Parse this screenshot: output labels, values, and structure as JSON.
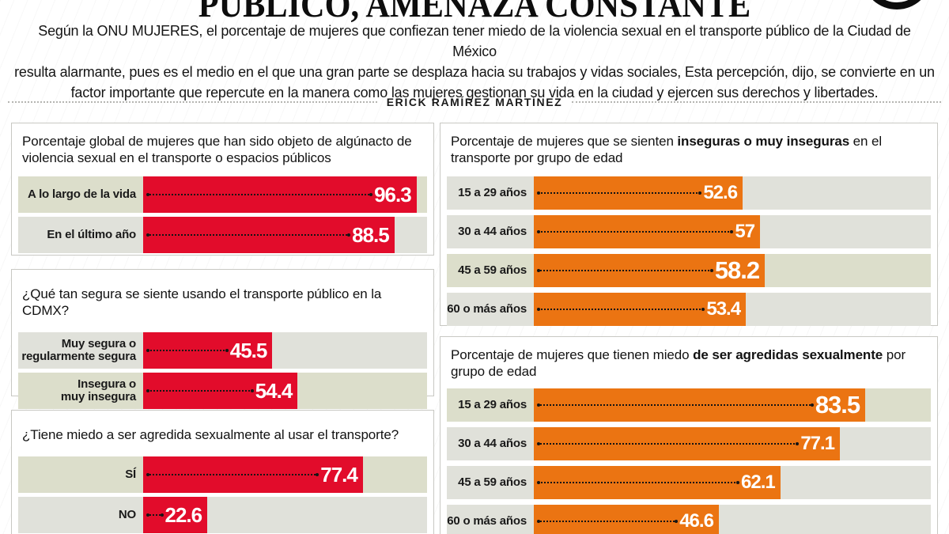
{
  "header": {
    "title": "PÚBLICO, AMENAZA CONSTANTE",
    "intro": "Según la ONU MUJERES, el porcentaje de mujeres que confiezan tener miedo de la violencia sexual en el transporte público de la Ciudad de México\nresulta alarmante, pues es el medio en el que una gran parte se desplaza hacia su trabajos y vidas sociales, Esta percepción, dijo, se convierte en un\nfactor importante que repercute en la manera como las mujeres gestionan su vida en la ciudad y ejercen sus derechos y libertades.",
    "byline": "ERICK RAMÍREZ MARTÍNEZ"
  },
  "colors": {
    "red": "#e20c2b",
    "orange": "#eb7412",
    "row_base": "#e0e1da",
    "row_highlight": "#dcdecb",
    "panel_border": "#c8c8c3",
    "leader": "#141414"
  },
  "chart_data": [
    {
      "type": "bar",
      "orientation": "horizontal",
      "column": "left",
      "title_pre": "Porcentaje global de mujeres que han sido objeto de algúnacto de violencia sexual en el transporte o espacios públicos",
      "title_bold": "",
      "title_post": "",
      "bar_color": "#e20c2b",
      "xlim": [
        0,
        100
      ],
      "grid": false,
      "legend": "none",
      "categories": [
        "A lo largo de la vida",
        "En el último año"
      ],
      "values": [
        96.3,
        88.5
      ],
      "value_labels": [
        "96.3",
        "88.5"
      ],
      "highlight_index": 0,
      "emphasize_value": false
    },
    {
      "type": "bar",
      "orientation": "horizontal",
      "column": "left",
      "title_pre": "¿Qué tan segura se siente usando el transporte público en la CDMX?",
      "title_bold": "",
      "title_post": "",
      "bar_color": "#e20c2b",
      "xlim": [
        0,
        100
      ],
      "grid": false,
      "legend": "none",
      "categories": [
        "Muy segura o\nregularmente segura",
        "Insegura o\nmuy insegura"
      ],
      "values": [
        45.5,
        54.4
      ],
      "value_labels": [
        "45.5",
        "54.4"
      ],
      "highlight_index": 1,
      "emphasize_value": false
    },
    {
      "type": "bar",
      "orientation": "horizontal",
      "column": "left",
      "title_pre": "¿Tiene miedo a ser agredida sexualmente al usar el transporte?",
      "title_bold": "",
      "title_post": "",
      "bar_color": "#e20c2b",
      "xlim": [
        0,
        100
      ],
      "grid": false,
      "legend": "none",
      "categories": [
        "SÍ",
        "NO"
      ],
      "values": [
        77.4,
        22.6
      ],
      "value_labels": [
        "77.4",
        "22.6"
      ],
      "highlight_index": 0,
      "emphasize_value": false
    },
    {
      "type": "bar",
      "orientation": "horizontal",
      "column": "right",
      "title_pre": "Porcentaje  de mujeres que se sienten ",
      "title_bold": "inseguras o muy inseguras",
      "title_post": " en el transporte por grupo de edad",
      "bar_color": "#eb7412",
      "xlim": [
        0,
        100
      ],
      "grid": false,
      "legend": "none",
      "categories": [
        "15 a 29 años",
        "30 a 44 años",
        "45 a 59 años",
        "60 o más años"
      ],
      "values": [
        52.6,
        57,
        58.2,
        53.4
      ],
      "value_labels": [
        "52.6",
        "57",
        "58.2",
        "53.4"
      ],
      "highlight_index": 2,
      "emphasize_value": true
    },
    {
      "type": "bar",
      "orientation": "horizontal",
      "column": "right",
      "title_pre": "Porcentaje  de mujeres que tienen miedo ",
      "title_bold": "de ser agredidas sexualmente",
      "title_post": " por grupo de edad",
      "bar_color": "#eb7412",
      "xlim": [
        0,
        100
      ],
      "grid": false,
      "legend": "none",
      "categories": [
        "15 a 29 años",
        "30 a 44 años",
        "45 a 59 años",
        "60 o más años"
      ],
      "values": [
        83.5,
        77.1,
        62.1,
        46.6
      ],
      "value_labels": [
        "83.5",
        "77.1",
        "62.1",
        "46.6"
      ],
      "highlight_index": 0,
      "emphasize_value": true
    }
  ]
}
